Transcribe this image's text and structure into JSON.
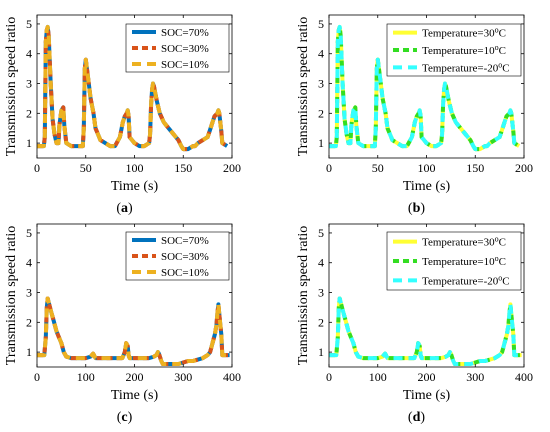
{
  "figure": {
    "panels": [
      {
        "caption_open": "(",
        "caption_letter": "a",
        "caption_close": ")"
      },
      {
        "caption_open": "(",
        "caption_letter": "b",
        "caption_close": ")"
      },
      {
        "caption_open": "(",
        "caption_letter": "c",
        "caption_close": ")"
      },
      {
        "caption_open": "(",
        "caption_letter": "d",
        "caption_close": ")"
      }
    ]
  },
  "colors": {
    "soc70": "#0072BD",
    "soc30": "#D95319",
    "soc10": "#EDB120",
    "t30": "#FFFF33",
    "t10": "#33DD22",
    "tm20": "#33FFFF"
  },
  "chart_data": [
    {
      "type": "line",
      "xlabel": "Time (s)",
      "ylabel": "Transmission speed ratio",
      "xlim": [
        0,
        200
      ],
      "ylim": [
        0.5,
        5.3
      ],
      "xticks": [
        0,
        50,
        100,
        150,
        200
      ],
      "yticks": [
        1,
        2,
        3,
        4,
        5
      ],
      "grid": false,
      "legend_position": "top-right",
      "series": [
        {
          "name": "SOC=70%",
          "style": "solid",
          "color": "#0072BD"
        },
        {
          "name": "SOC=30%",
          "style": "dashed",
          "color": "#D95319"
        },
        {
          "name": "SOC=10%",
          "style": "dashed",
          "color": "#EDB120"
        }
      ],
      "x": [
        0,
        5,
        7,
        8,
        9,
        10,
        11,
        12,
        14,
        16,
        18,
        20,
        22,
        23,
        25,
        27,
        28,
        30,
        35,
        40,
        45,
        47,
        48,
        49,
        50,
        52,
        55,
        58,
        60,
        65,
        70,
        75,
        80,
        85,
        88,
        90,
        92,
        93,
        94,
        95,
        100,
        105,
        110,
        115,
        116,
        117,
        118,
        119,
        120,
        123,
        126,
        130,
        135,
        140,
        145,
        148,
        150,
        155,
        160,
        162,
        165,
        170,
        175,
        178,
        180,
        182,
        185,
        186,
        187,
        189,
        190,
        195
      ],
      "y": [
        0.9,
        0.9,
        0.9,
        1.2,
        4.4,
        4.8,
        4.9,
        4.6,
        3.0,
        1.8,
        1.3,
        1.0,
        1.0,
        1.6,
        2.1,
        2.2,
        1.6,
        1.0,
        0.9,
        0.9,
        0.9,
        0.9,
        1.5,
        3.5,
        3.8,
        3.3,
        2.5,
        2.0,
        1.5,
        1.1,
        1.0,
        0.9,
        0.9,
        1.2,
        1.7,
        1.9,
        2.0,
        2.1,
        1.9,
        1.2,
        1.0,
        0.9,
        0.9,
        1.0,
        1.3,
        2.3,
        2.8,
        3.0,
        2.9,
        2.4,
        2.0,
        1.7,
        1.5,
        1.3,
        1.1,
        0.9,
        0.8,
        0.8,
        0.9,
        0.9,
        1.0,
        1.1,
        1.2,
        1.5,
        1.7,
        1.9,
        2.0,
        2.1,
        2.0,
        1.4,
        1.0,
        0.9
      ]
    },
    {
      "type": "line",
      "xlabel": "Time (s)",
      "ylabel": "Transmission speed ratio",
      "xlim": [
        0,
        200
      ],
      "ylim": [
        0.5,
        5.3
      ],
      "xticks": [
        0,
        50,
        100,
        150,
        200
      ],
      "yticks": [
        1,
        2,
        3,
        4,
        5
      ],
      "grid": false,
      "legend_position": "top-right",
      "series": [
        {
          "name": "Temperature=30",
          "sup": "o",
          "unit": "C",
          "style": "solid",
          "color": "#FFFF33"
        },
        {
          "name": "Temperature=10",
          "sup": "o",
          "unit": "C",
          "style": "dashed",
          "color": "#33DD22"
        },
        {
          "name": "Temperature=-20",
          "sup": "o",
          "unit": "C",
          "style": "dashed",
          "color": "#33FFFF"
        }
      ],
      "x": [
        0,
        5,
        7,
        8,
        9,
        10,
        11,
        12,
        14,
        16,
        18,
        20,
        22,
        23,
        25,
        27,
        28,
        30,
        35,
        40,
        45,
        47,
        48,
        49,
        50,
        52,
        55,
        58,
        60,
        65,
        70,
        75,
        80,
        85,
        88,
        90,
        92,
        93,
        94,
        95,
        100,
        105,
        110,
        115,
        116,
        117,
        118,
        119,
        120,
        123,
        126,
        130,
        135,
        140,
        145,
        148,
        150,
        155,
        160,
        162,
        165,
        170,
        175,
        178,
        180,
        182,
        185,
        186,
        187,
        189,
        190,
        195
      ],
      "y": [
        0.9,
        0.9,
        0.9,
        1.2,
        4.4,
        4.8,
        4.9,
        4.6,
        3.0,
        1.8,
        1.3,
        1.0,
        1.0,
        1.6,
        2.1,
        2.2,
        1.6,
        1.0,
        0.9,
        0.9,
        0.9,
        0.9,
        1.5,
        3.5,
        3.8,
        3.3,
        2.5,
        2.0,
        1.5,
        1.1,
        1.0,
        0.9,
        0.9,
        1.2,
        1.7,
        1.9,
        2.0,
        2.1,
        1.9,
        1.2,
        1.0,
        0.9,
        0.9,
        1.0,
        1.3,
        2.3,
        2.8,
        3.0,
        2.9,
        2.4,
        2.0,
        1.7,
        1.5,
        1.3,
        1.1,
        0.9,
        0.8,
        0.8,
        0.9,
        0.9,
        1.0,
        1.1,
        1.2,
        1.5,
        1.7,
        1.9,
        2.0,
        2.1,
        2.0,
        1.4,
        1.0,
        0.9
      ]
    },
    {
      "type": "line",
      "xlabel": "Time (s)",
      "ylabel": "Transmission speed ratio",
      "xlim": [
        0,
        400
      ],
      "ylim": [
        0.5,
        5.3
      ],
      "xticks": [
        0,
        100,
        200,
        300,
        400
      ],
      "yticks": [
        1,
        2,
        3,
        4,
        5
      ],
      "grid": false,
      "legend_position": "top-right",
      "series": [
        {
          "name": "SOC=70%",
          "style": "solid",
          "color": "#0072BD"
        },
        {
          "name": "SOC=30%",
          "style": "dashed",
          "color": "#D95319"
        },
        {
          "name": "SOC=10%",
          "style": "dashed",
          "color": "#EDB120"
        }
      ],
      "x": [
        0,
        10,
        15,
        18,
        20,
        22,
        25,
        30,
        35,
        40,
        45,
        50,
        55,
        60,
        70,
        80,
        90,
        100,
        110,
        115,
        120,
        125,
        130,
        140,
        150,
        160,
        170,
        175,
        180,
        183,
        186,
        188,
        190,
        195,
        200,
        210,
        220,
        230,
        240,
        245,
        248,
        250,
        255,
        258,
        260,
        270,
        280,
        290,
        300,
        310,
        320,
        330,
        340,
        350,
        355,
        360,
        365,
        368,
        370,
        372,
        375,
        378,
        380,
        385,
        390,
        395
      ],
      "y": [
        0.9,
        0.9,
        0.9,
        1.5,
        2.5,
        2.8,
        2.6,
        2.3,
        2.0,
        1.7,
        1.5,
        1.3,
        1.0,
        0.85,
        0.8,
        0.8,
        0.8,
        0.8,
        0.85,
        0.95,
        0.8,
        0.8,
        0.8,
        0.8,
        0.8,
        0.8,
        0.8,
        0.8,
        1.0,
        1.3,
        1.2,
        0.9,
        0.8,
        0.8,
        0.8,
        0.8,
        0.8,
        0.8,
        0.85,
        0.9,
        1.0,
        0.95,
        0.7,
        0.6,
        0.6,
        0.6,
        0.6,
        0.6,
        0.65,
        0.7,
        0.7,
        0.75,
        0.8,
        0.9,
        1.0,
        1.3,
        1.6,
        1.9,
        2.3,
        2.6,
        2.1,
        1.6,
        0.9,
        0.9,
        0.9,
        0.9
      ]
    },
    {
      "type": "line",
      "xlabel": "Time (s)",
      "ylabel": "Transmission speed ratio",
      "xlim": [
        0,
        400
      ],
      "ylim": [
        0.5,
        5.3
      ],
      "xticks": [
        0,
        100,
        200,
        300,
        400
      ],
      "yticks": [
        1,
        2,
        3,
        4,
        5
      ],
      "grid": false,
      "legend_position": "top-right",
      "series": [
        {
          "name": "Temperature=30",
          "sup": "o",
          "unit": "C",
          "style": "solid",
          "color": "#FFFF33"
        },
        {
          "name": "Temperature=10",
          "sup": "o",
          "unit": "C",
          "style": "dashed",
          "color": "#33DD22"
        },
        {
          "name": "Temperature=-20",
          "sup": "o",
          "unit": "C",
          "style": "dashed",
          "color": "#33FFFF"
        }
      ],
      "x": [
        0,
        10,
        15,
        18,
        20,
        22,
        25,
        30,
        35,
        40,
        45,
        50,
        55,
        60,
        70,
        80,
        90,
        100,
        110,
        115,
        120,
        125,
        130,
        140,
        150,
        160,
        170,
        175,
        180,
        183,
        186,
        188,
        190,
        195,
        200,
        210,
        220,
        230,
        240,
        245,
        248,
        250,
        255,
        258,
        260,
        270,
        280,
        290,
        300,
        310,
        320,
        330,
        340,
        350,
        355,
        360,
        365,
        368,
        370,
        372,
        375,
        378,
        380,
        385,
        390,
        395
      ],
      "y": [
        0.9,
        0.9,
        0.9,
        1.5,
        2.5,
        2.8,
        2.6,
        2.3,
        2.0,
        1.7,
        1.5,
        1.3,
        1.0,
        0.85,
        0.8,
        0.8,
        0.8,
        0.8,
        0.85,
        0.95,
        0.8,
        0.8,
        0.8,
        0.8,
        0.8,
        0.8,
        0.8,
        0.8,
        1.0,
        1.3,
        1.2,
        0.9,
        0.8,
        0.8,
        0.8,
        0.8,
        0.8,
        0.8,
        0.85,
        0.9,
        1.0,
        0.95,
        0.7,
        0.6,
        0.6,
        0.6,
        0.6,
        0.6,
        0.65,
        0.7,
        0.7,
        0.75,
        0.8,
        0.9,
        1.0,
        1.3,
        1.6,
        1.9,
        2.3,
        2.6,
        2.1,
        1.6,
        0.9,
        0.9,
        0.9,
        0.9
      ]
    }
  ]
}
